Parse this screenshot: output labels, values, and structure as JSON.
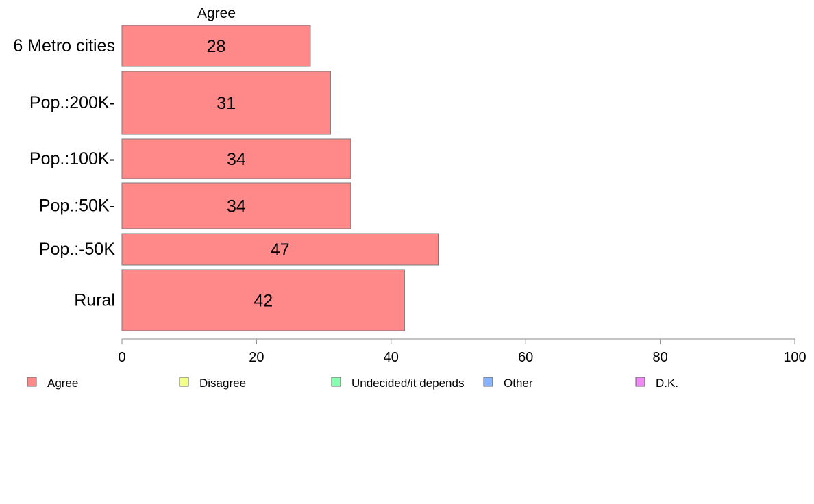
{
  "chart_data": {
    "type": "bar",
    "orientation": "horizontal",
    "title": "",
    "xlabel": "",
    "ylabel": "",
    "xlim": [
      0,
      100
    ],
    "xticks": [
      0,
      20,
      40,
      60,
      80,
      100
    ],
    "categories": [
      "6 Metro cities",
      "Pop.:200K-",
      "Pop.:100K-",
      "Pop.:50K-",
      "Pop.:-50K",
      "Rural"
    ],
    "series": [
      {
        "name": "Agree",
        "color": "#ff8888",
        "values": [
          28,
          31,
          34,
          34,
          47,
          42
        ],
        "labels": [
          "28",
          "31",
          "34",
          "34",
          "47",
          "42"
        ],
        "header": "Agree"
      }
    ],
    "legend": {
      "placement": "bottom",
      "items": [
        {
          "label": "Agree",
          "color": "#ff8888"
        },
        {
          "label": "Disagree",
          "color": "#f2ff88"
        },
        {
          "label": "Undecided/it depends",
          "color": "#88ffb0"
        },
        {
          "label": "Other",
          "color": "#88b4ff"
        },
        {
          "label": "D.K.",
          "color": "#f088f5"
        }
      ]
    },
    "grid": false
  }
}
